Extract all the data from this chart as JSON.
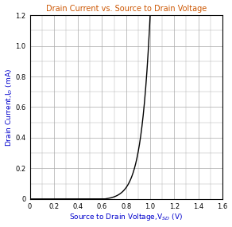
{
  "title": "Drain Current vs. Source to Drain Voltage",
  "xlabel": "Source to Drain Voltage,V$_{SD}$ (V)",
  "ylabel": "Drain Current,I$_{D}$ (mA)",
  "xlim": [
    0,
    1.6
  ],
  "ylim": [
    0,
    1.2
  ],
  "xticks": [
    0,
    0.2,
    0.4,
    0.6,
    0.8,
    1.0,
    1.2,
    1.4,
    1.6
  ],
  "yticks": [
    0,
    0.2,
    0.4,
    0.6,
    0.8,
    1.0,
    1.2
  ],
  "xtick_labels": [
    "0",
    "0.2",
    "0.4",
    "0.6",
    "0.8",
    "1.0",
    "1.2",
    "1.4",
    "1.6"
  ],
  "ytick_labels": [
    "0",
    "0.2",
    "0.4",
    "0.6",
    "0.8",
    "1.0",
    "1.2"
  ],
  "curve_color": "#000000",
  "grid_color": "#aaaaaa",
  "title_color": "#cc5500",
  "label_color": "#0000cc",
  "tick_color": "#000000",
  "background_color": "#ffffff",
  "curve_A": 8e-05,
  "curve_B": 13.5,
  "curve_V0": 0.62
}
